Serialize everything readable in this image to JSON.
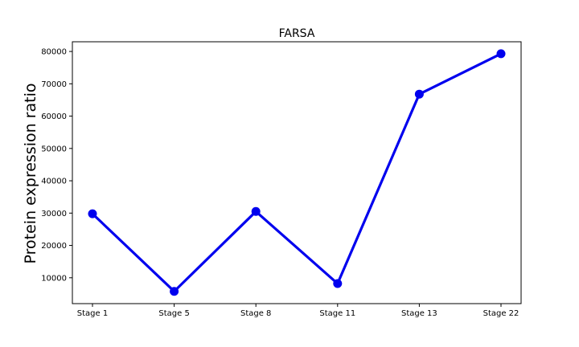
{
  "chart_data": {
    "type": "line",
    "title": "FARSA",
    "xlabel": "",
    "ylabel": "Protein expression ratio",
    "categories": [
      "Stage 1",
      "Stage 5",
      "Stage 8",
      "Stage 11",
      "Stage 13",
      "Stage 22"
    ],
    "series": [
      {
        "values": [
          29800,
          5800,
          30500,
          8200,
          66800,
          79300
        ],
        "color": "#0000ee"
      }
    ],
    "yticks": [
      10000,
      20000,
      30000,
      40000,
      50000,
      60000,
      70000,
      80000
    ],
    "ylim": [
      2000,
      83000
    ],
    "grid": false,
    "legend": "none"
  }
}
